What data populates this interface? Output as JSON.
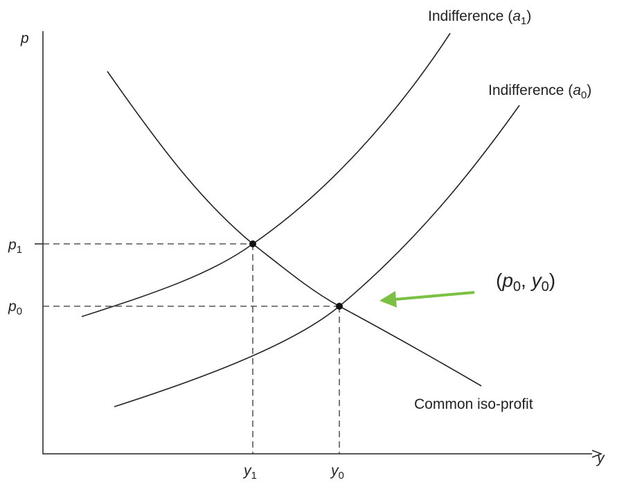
{
  "axes": {
    "vertical": "p",
    "horizontal": "y"
  },
  "ticks": {
    "p1": {
      "symbol": "p",
      "sub": "1"
    },
    "p0": {
      "symbol": "p",
      "sub": "0"
    },
    "y1": {
      "symbol": "y",
      "sub": "1"
    },
    "y0": {
      "symbol": "y",
      "sub": "0"
    }
  },
  "curves": [
    {
      "text": "Indifference (",
      "symbol": "a",
      "sub": "1",
      "close": ")"
    },
    {
      "text": "Indifference (",
      "symbol": "a",
      "sub": "0",
      "close": ")"
    },
    {
      "text": "Common iso-profit"
    }
  ],
  "annotation": {
    "open": "(",
    "symbol1": "p",
    "sub1": "0",
    "sep": ", ",
    "symbol2": "y",
    "sub2": "0",
    "close": ")"
  }
}
